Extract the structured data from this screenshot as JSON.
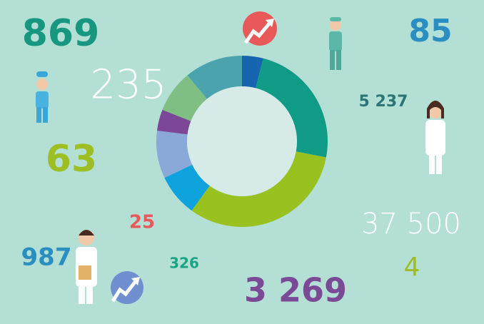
{
  "chart_data": {
    "type": "donut",
    "values": [
      4,
      24,
      32,
      8,
      9,
      4,
      8,
      11
    ],
    "colors": [
      "#1565b0",
      "#0f9b86",
      "#99c221",
      "#0fa3de",
      "#8aa9d8",
      "#7b4796",
      "#7fbf84",
      "#4aa3ad"
    ]
  },
  "figures": [
    {
      "text": "869",
      "color": "#17977f"
    },
    {
      "text": "85",
      "color": "#2a8fc0"
    },
    {
      "text": "235",
      "color": "#ffffff"
    },
    {
      "text": "5 237",
      "color": "#2c7577"
    },
    {
      "text": "63",
      "color": "#9dbf24"
    },
    {
      "text": "25",
      "color": "#e85a5a"
    },
    {
      "text": "37 500",
      "color": "#ffffff"
    },
    {
      "text": "987",
      "color": "#2a8fc0"
    },
    {
      "text": "326",
      "color": "#1aa384"
    },
    {
      "text": "4",
      "color": "#9dbf24"
    },
    {
      "text": "3 269",
      "color": "#7b4a96"
    }
  ]
}
